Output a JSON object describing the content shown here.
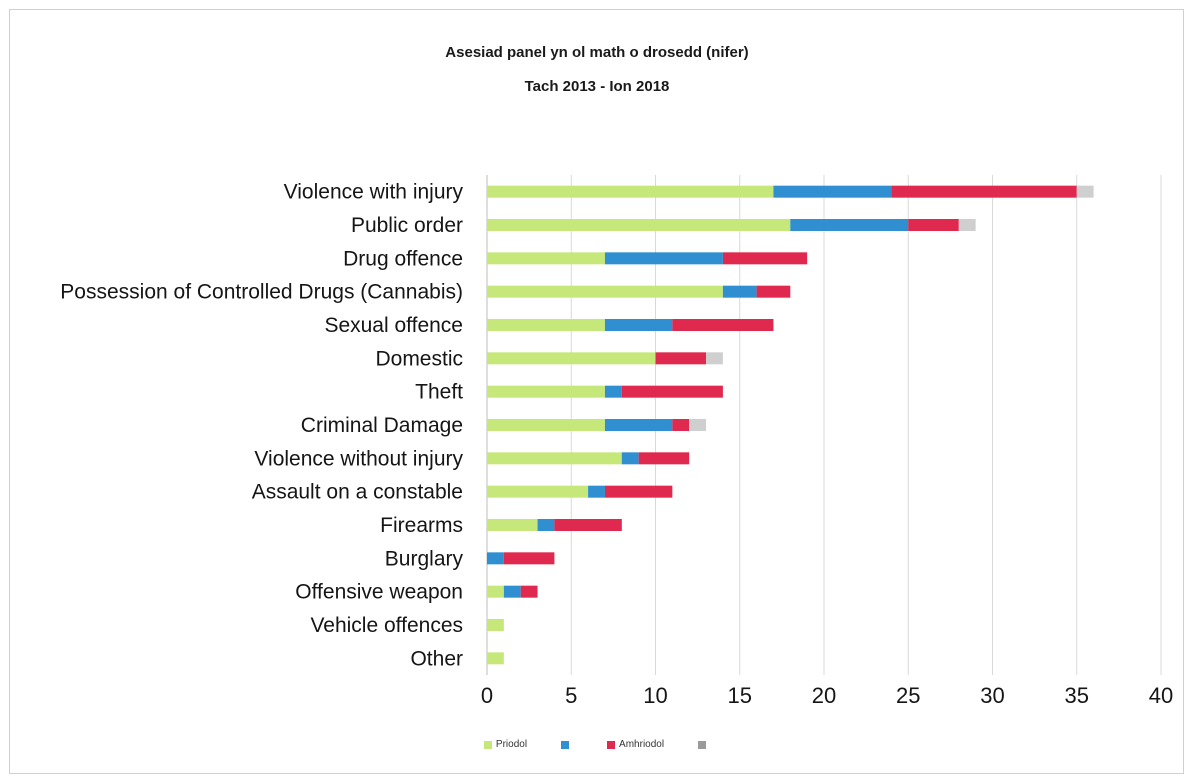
{
  "chart_data": {
    "type": "bar",
    "orientation": "horizontal",
    "stacked": true,
    "title": "Asesiad panel yn ol math o drosedd (nifer)",
    "subtitle": "Tach 2013 - Ion 2018",
    "xlabel": "",
    "ylabel": "",
    "xlim": [
      0,
      40
    ],
    "xticks": [
      "0",
      "5",
      "10",
      "15",
      "20",
      "25",
      "30",
      "35",
      "40"
    ],
    "grid": "vertical",
    "legend_position": "bottom",
    "categories": [
      "Violence with injury",
      "Public order",
      "Drug offence",
      "Possession of Controlled Drugs (Cannabis)",
      "Sexual offence",
      "Domestic",
      "Theft",
      "Criminal Damage",
      "Violence without injury",
      "Assault on a constable",
      "Firearms",
      "Burglary",
      "Offensive weapon",
      "Vehicle offences",
      "Other"
    ],
    "series": [
      {
        "name": "Priodol",
        "color": "#c6e87a",
        "values": [
          17,
          18,
          7,
          14,
          7,
          10,
          7,
          7,
          8,
          6,
          3,
          0,
          1,
          1,
          1
        ]
      },
      {
        "name": "",
        "color": "#2f8fd0",
        "values": [
          7,
          7,
          7,
          2,
          4,
          0,
          1,
          4,
          1,
          1,
          1,
          1,
          1,
          0,
          0
        ]
      },
      {
        "name": "Amhriodol",
        "color": "#e0294f",
        "values": [
          11,
          3,
          5,
          2,
          6,
          3,
          6,
          1,
          3,
          4,
          4,
          3,
          1,
          0,
          0
        ]
      },
      {
        "name": "",
        "color": "#cfcfcf",
        "values": [
          1,
          1,
          0,
          0,
          0,
          1,
          0,
          1,
          0,
          0,
          0,
          0,
          0,
          0,
          0
        ]
      }
    ],
    "legend": [
      {
        "label": "Priodol",
        "color": "#c6e87a"
      },
      {
        "label": "",
        "color": "#2f8fd0"
      },
      {
        "label": "Amhriodol",
        "color": "#e0294f"
      },
      {
        "label": "",
        "color": "#9a9a9a"
      }
    ]
  }
}
